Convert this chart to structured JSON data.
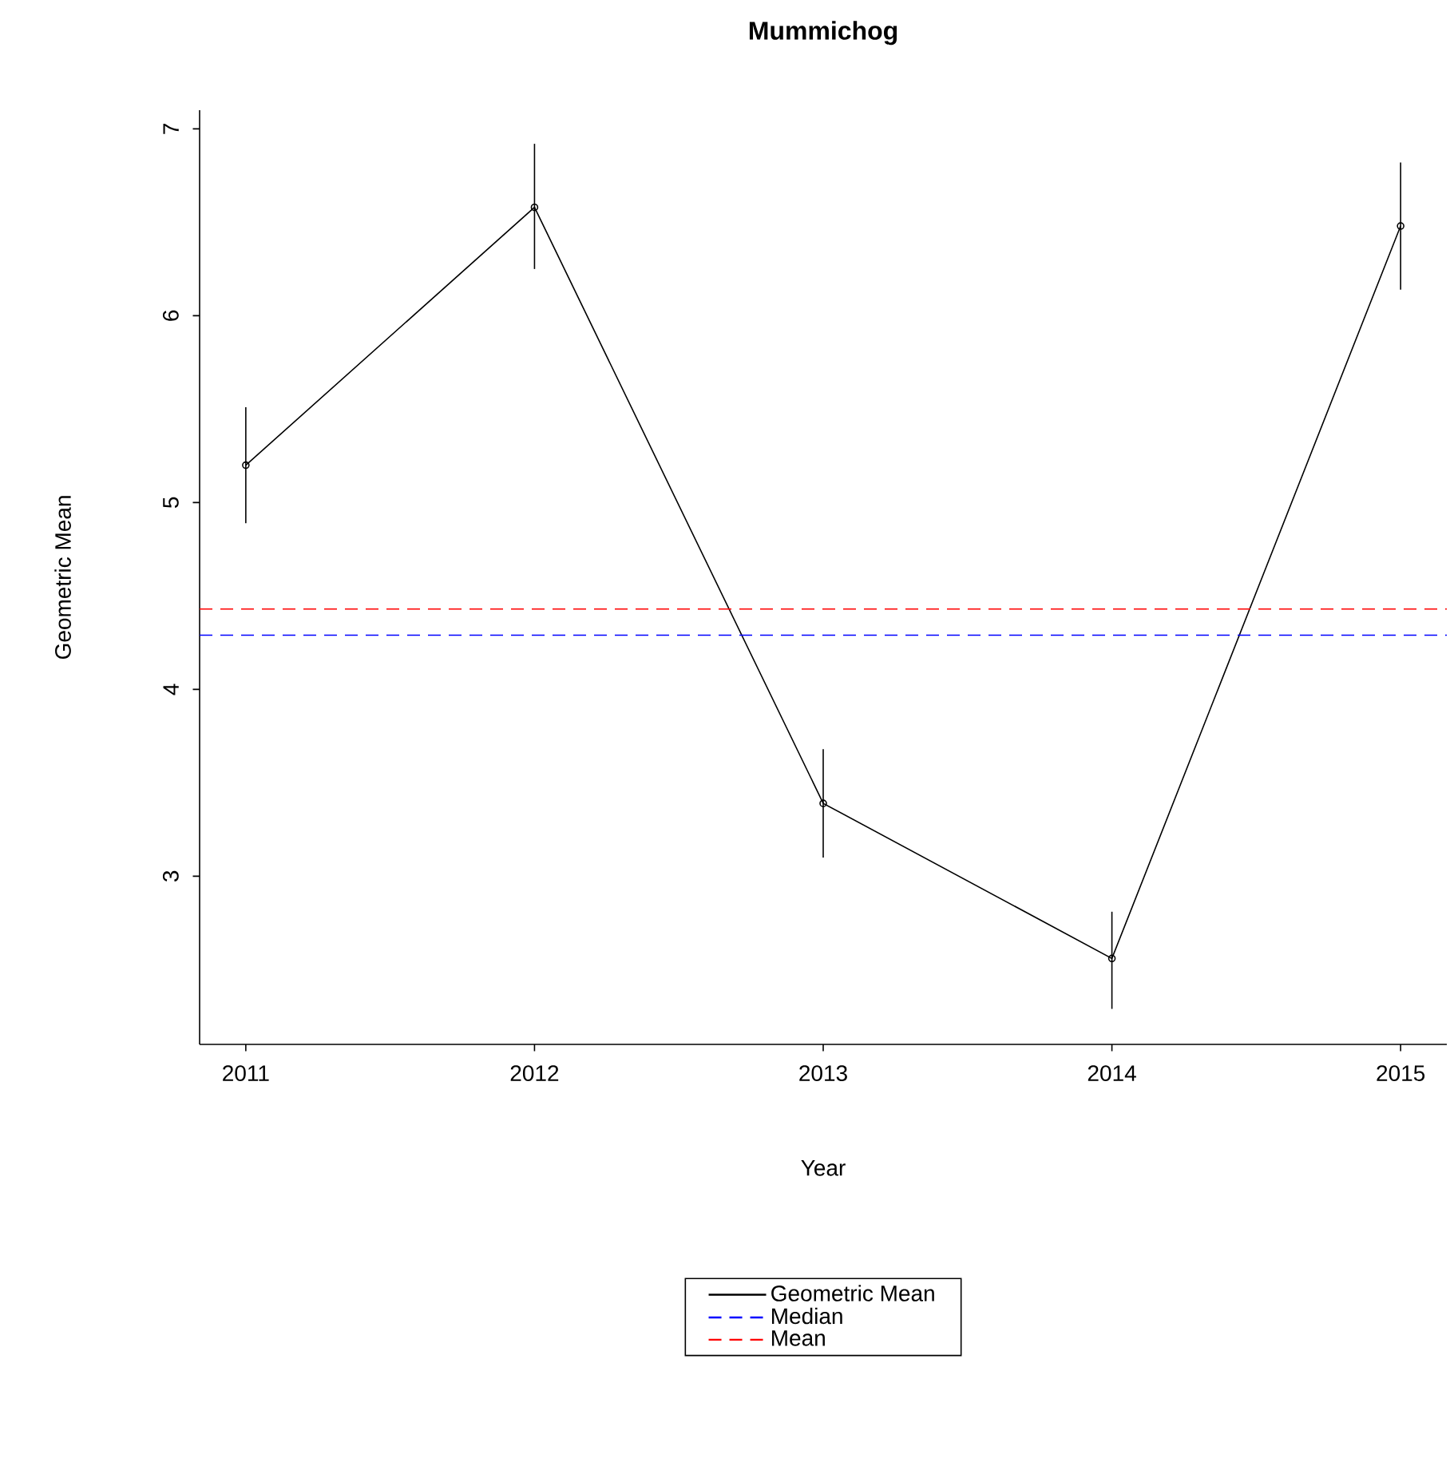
{
  "chart_data": {
    "type": "line",
    "title": "Mummichog",
    "xlabel": "Year",
    "ylabel": "Geometric Mean",
    "x": [
      2011,
      2012,
      2013,
      2014,
      2015
    ],
    "series": [
      {
        "name": "Geometric Mean",
        "color": "#000000",
        "values": [
          5.2,
          6.58,
          3.39,
          2.56,
          6.48
        ],
        "errors": [
          [
            4.89,
            5.51
          ],
          [
            6.25,
            6.92
          ],
          [
            3.1,
            3.68
          ],
          [
            2.29,
            2.81
          ],
          [
            6.14,
            6.82
          ]
        ]
      }
    ],
    "ref_lines": [
      {
        "axis": "y",
        "value": 4.29,
        "label": "Median",
        "color": "#0000ff",
        "line_style": "dashed"
      },
      {
        "axis": "y",
        "value": 4.43,
        "label": "Mean",
        "color": "#ff0000",
        "line_style": "dashed"
      }
    ],
    "xlim": [
      2010.84,
      2015.16
    ],
    "ylim": [
      2.1,
      7.1
    ],
    "xticks": [
      2011,
      2012,
      2013,
      2014,
      2015
    ],
    "yticks": [
      3,
      4,
      5,
      6,
      7
    ],
    "marker": "circle",
    "line_style": "solid",
    "grid": false,
    "legend": "bottom"
  }
}
